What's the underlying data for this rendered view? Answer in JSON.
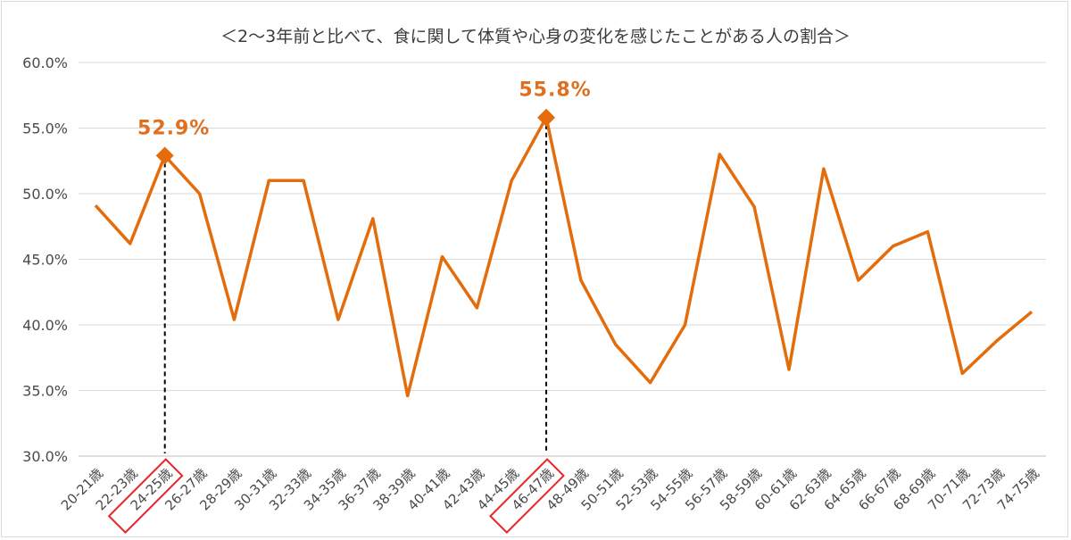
{
  "chart_data": {
    "type": "line",
    "title": "＜2～3年前と比べて、食に関して体質や心身の変化を感じたことがある人の割合＞",
    "xlabel": "",
    "ylabel": "",
    "ylim": [
      30,
      60
    ],
    "y_ticks": [
      "30.0%",
      "35.0%",
      "40.0%",
      "45.0%",
      "50.0%",
      "55.0%",
      "60.0%"
    ],
    "grid": true,
    "legend": "none",
    "line_color": "#e46c0a",
    "highlight_box_color": "#e8262a",
    "categories": [
      "20-21歳",
      "22-23歳",
      "24-25歳",
      "26-27歳",
      "28-29歳",
      "30-31歳",
      "32-33歳",
      "34-35歳",
      "36-37歳",
      "38-39歳",
      "40-41歳",
      "42-43歳",
      "44-45歳",
      "46-47歳",
      "48-49歳",
      "50-51歳",
      "52-53歳",
      "54-55歳",
      "56-57歳",
      "58-59歳",
      "60-61歳",
      "62-63歳",
      "64-65歳",
      "66-67歳",
      "68-69歳",
      "70-71歳",
      "72-73歳",
      "74-75歳"
    ],
    "series": [
      {
        "values": [
          49.1,
          46.2,
          52.9,
          50.0,
          40.4,
          51.0,
          51.0,
          40.4,
          48.1,
          34.6,
          45.2,
          41.3,
          51.0,
          55.8,
          43.4,
          38.5,
          35.6,
          40.0,
          53.0,
          49.0,
          36.6,
          51.9,
          43.4,
          46.0,
          47.1,
          36.3,
          38.8,
          41.0
        ]
      }
    ],
    "highlights": [
      {
        "index": 2,
        "label": "52.9%"
      },
      {
        "index": 13,
        "label": "55.8%"
      }
    ]
  }
}
